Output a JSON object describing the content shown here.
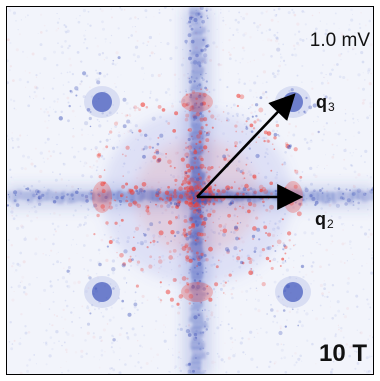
{
  "labels": {
    "energy": "1.0 mV",
    "field": "10 T",
    "q3_prefix": "q",
    "q3_subscript": "3",
    "q2_prefix": "q",
    "q2_subscript": "2"
  },
  "colors": {
    "background": "#f2f4fb",
    "blue": "#3e52b7",
    "red": "#ef3c33",
    "arrow": "#000000",
    "text": "#111111"
  }
}
